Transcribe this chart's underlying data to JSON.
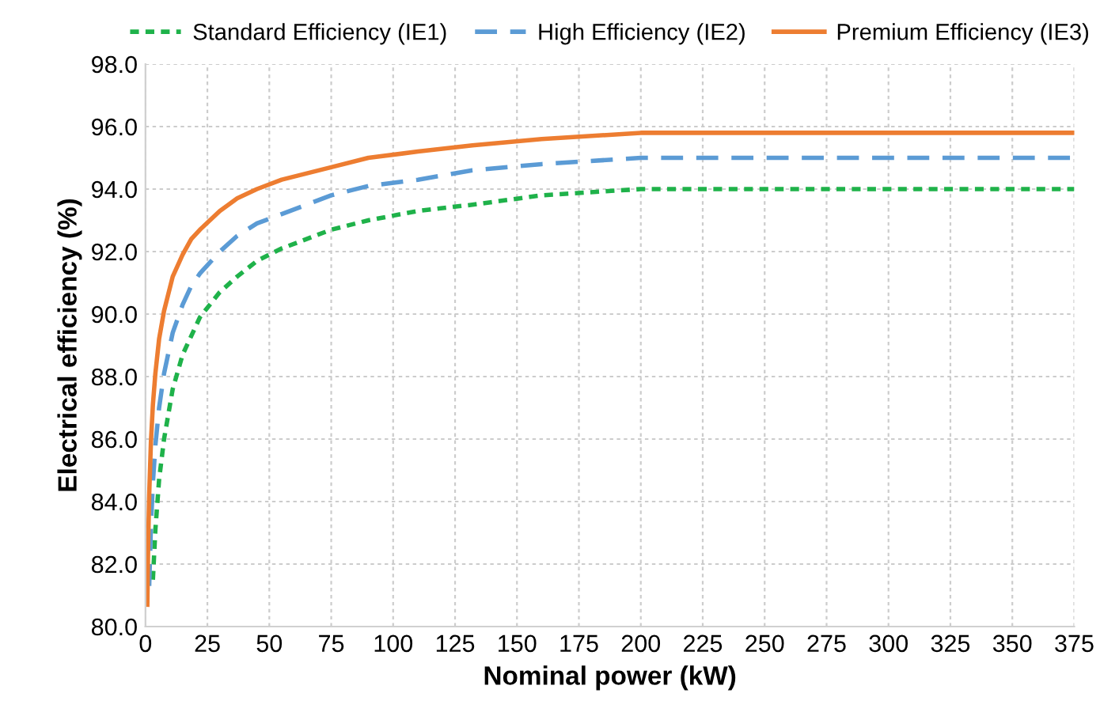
{
  "chart_data": {
    "type": "line",
    "xlabel": "Nominal power (kW)",
    "ylabel": "Electrical efficiency (%)",
    "xlim": [
      0,
      375
    ],
    "xticks": [
      0,
      25,
      50,
      75,
      100,
      125,
      150,
      175,
      200,
      225,
      250,
      275,
      300,
      325,
      350,
      375
    ],
    "ylim": [
      80,
      98
    ],
    "yticks": [
      {
        "value": 80,
        "label": "80.0"
      },
      {
        "value": 82,
        "label": "82.0"
      },
      {
        "value": 84,
        "label": "84.0"
      },
      {
        "value": 86,
        "label": "86.0"
      },
      {
        "value": 88,
        "label": "88.0"
      },
      {
        "value": 90,
        "label": "90.0"
      },
      {
        "value": 92,
        "label": "92.0"
      },
      {
        "value": 94,
        "label": "94.0"
      },
      {
        "value": 96,
        "label": "96.0"
      },
      {
        "value": 98,
        "label": "98.0"
      }
    ],
    "grid": true,
    "legend": "top",
    "marker": "none",
    "series": [
      {
        "name": "Standard Efficiency (IE1)",
        "color": "#1fb24a",
        "line_style": "dotted",
        "x": [
          3,
          4,
          5.5,
          7.5,
          11,
          15,
          18.5,
          22,
          30,
          37,
          45,
          55,
          75,
          90,
          110,
          132,
          160,
          200,
          250,
          315,
          355,
          375
        ],
        "values": [
          81.5,
          83.1,
          84.7,
          86.0,
          87.6,
          88.7,
          89.3,
          89.9,
          90.7,
          91.2,
          91.7,
          92.1,
          92.7,
          93.0,
          93.3,
          93.5,
          93.8,
          94.0,
          94.0,
          94.0,
          94.0,
          94.0
        ]
      },
      {
        "name": "High Efficiency (IE2)",
        "color": "#5b9bd5",
        "line_style": "dashed",
        "x": [
          1.5,
          2.2,
          3,
          4,
          5.5,
          7.5,
          11,
          15,
          18.5,
          22,
          30,
          37,
          45,
          55,
          75,
          90,
          110,
          132,
          160,
          200,
          250,
          315,
          355,
          375
        ],
        "values": [
          81.3,
          83.2,
          84.6,
          85.8,
          87.0,
          88.1,
          89.4,
          90.3,
          90.9,
          91.3,
          92.0,
          92.5,
          92.9,
          93.2,
          93.8,
          94.1,
          94.3,
          94.6,
          94.8,
          95.0,
          95.0,
          95.0,
          95.0,
          95.0
        ]
      },
      {
        "name": "Premium Efficiency (IE3)",
        "color": "#ed7d31",
        "line_style": "solid",
        "x": [
          0.75,
          1.1,
          1.5,
          2.2,
          3,
          4,
          5.5,
          7.5,
          11,
          15,
          18.5,
          22,
          30,
          37,
          45,
          55,
          75,
          90,
          110,
          132,
          160,
          200,
          250,
          315,
          355,
          375
        ],
        "values": [
          80.7,
          82.7,
          84.2,
          85.9,
          87.1,
          88.1,
          89.2,
          90.1,
          91.2,
          91.9,
          92.4,
          92.7,
          93.3,
          93.7,
          94.0,
          94.3,
          94.7,
          95.0,
          95.2,
          95.4,
          95.6,
          95.8,
          95.8,
          95.8,
          95.8,
          95.8
        ]
      }
    ]
  }
}
